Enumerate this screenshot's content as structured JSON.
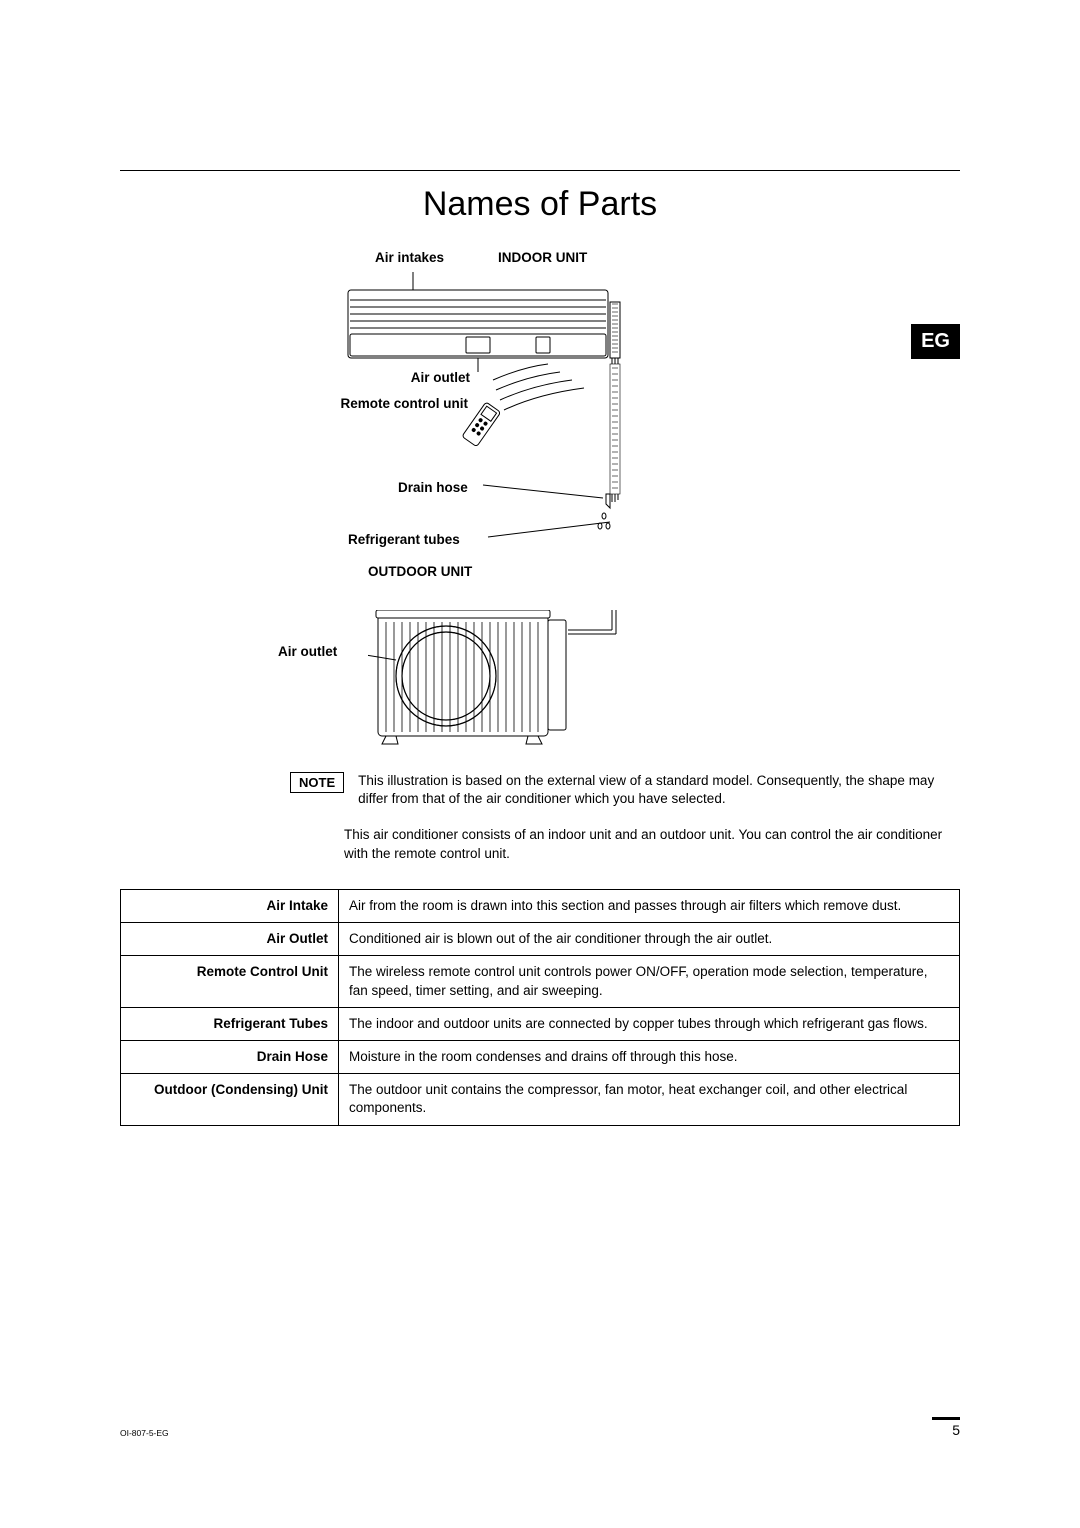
{
  "title": "Names of Parts",
  "eg_badge": "EG",
  "diagram": {
    "labels": {
      "air_intakes": "Air intakes",
      "indoor_unit": "INDOOR UNIT",
      "air_outlet_indoor": "Air outlet",
      "remote_control_unit": "Remote control unit",
      "drain_hose": "Drain hose",
      "refrigerant_tubes": "Refrigerant tubes",
      "outdoor_unit": "OUTDOOR UNIT",
      "air_outlet_outdoor": "Air outlet"
    },
    "colors": {
      "stroke": "#000000",
      "fill": "#ffffff"
    }
  },
  "note": {
    "label": "NOTE",
    "text": "This illustration is based on the external view of a standard model. Consequently, the shape may differ from that of the air conditioner which you have selected."
  },
  "intro": "This air conditioner consists of an indoor unit and an outdoor unit. You can control the air conditioner with the remote control unit.",
  "parts_table": {
    "rows": [
      {
        "name": "Air Intake",
        "desc": "Air from the room is drawn into this section and passes through air filters which remove dust."
      },
      {
        "name": "Air Outlet",
        "desc": "Conditioned air is blown out of the air conditioner through the air outlet."
      },
      {
        "name": "Remote Control Unit",
        "desc": "The wireless remote control unit controls power ON/OFF, operation mode selection, temperature, fan speed, timer setting, and air sweeping."
      },
      {
        "name": "Refrigerant Tubes",
        "desc": "The indoor and outdoor units are connected by copper tubes through which refrigerant gas flows."
      },
      {
        "name": "Drain Hose",
        "desc": "Moisture in the room condenses and drains off through this hose."
      },
      {
        "name": "Outdoor (Condensing) Unit",
        "desc": "The outdoor unit contains the compressor, fan motor, heat exchanger coil, and other electrical components."
      }
    ]
  },
  "footer": {
    "doc_id": "OI-807-5-EG",
    "page_num": "5"
  }
}
